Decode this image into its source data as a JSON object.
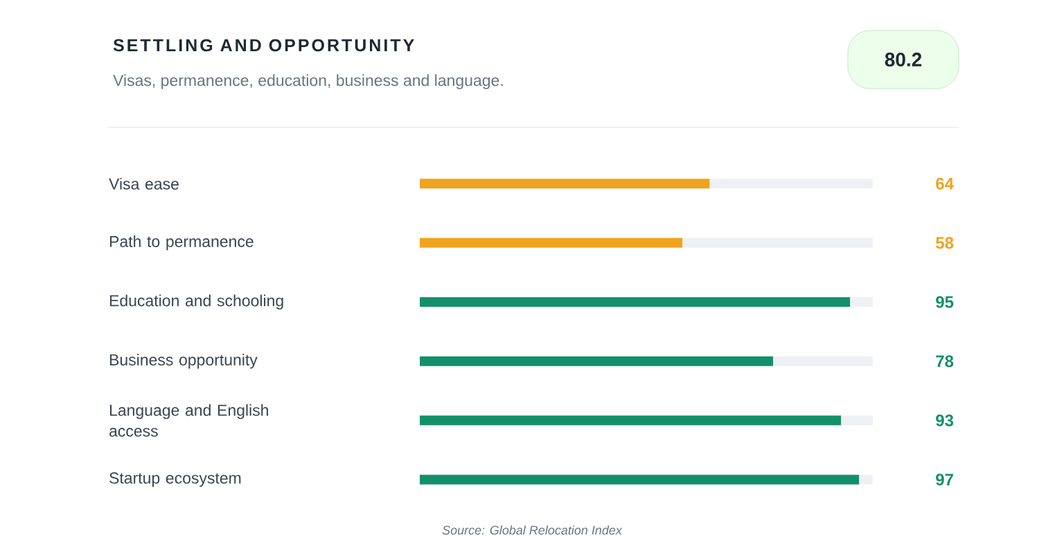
{
  "chart_data": {
    "type": "bar",
    "orientation": "horizontal",
    "title": "SETTLING AND OPPORTUNITY",
    "subtitle": "Visas, permanence, education, business and language.",
    "categories": [
      "Visa ease",
      "Path to permanence",
      "Education and schooling",
      "Business opportunity",
      "Language and English access",
      "Startup ecosystem"
    ],
    "stacked": true,
    "series": [
      {
        "colors": [
          "#f0a31e",
          "#f0a31e",
          "#13906a",
          "#13906a",
          "#13906a",
          "#13906a"
        ],
        "values": [
          64,
          58,
          95,
          78,
          93,
          97
        ],
        "value_labels": [
          "64",
          "58",
          "95",
          "78",
          "93",
          "97"
        ]
      },
      {
        "color": "#eef0f4",
        "values": [
          36,
          42,
          5,
          22,
          7,
          3
        ]
      }
    ],
    "xlim": [
      0,
      100
    ],
    "tick_labels": "y",
    "legend": false,
    "annotations": [
      "80.2",
      "Source: Global Relocation Index"
    ]
  }
}
